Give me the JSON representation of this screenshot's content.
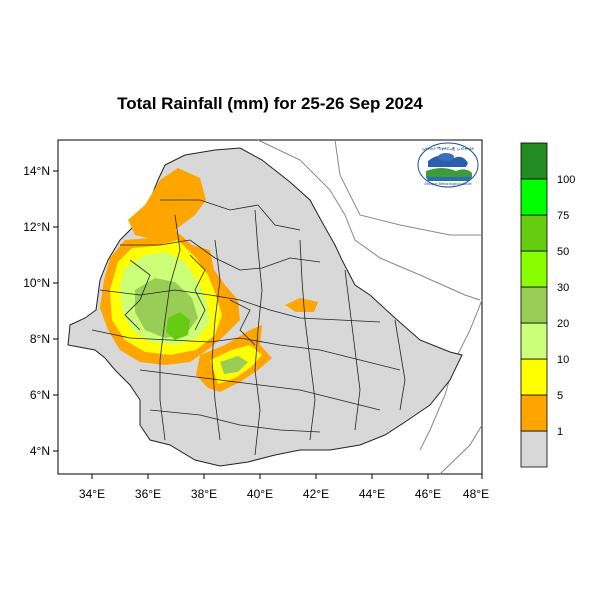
{
  "title": "Total Rainfall (mm) for 25-26 Sep 2024",
  "axes": {
    "x_ticks": [
      "34°E",
      "36°E",
      "38°E",
      "40°E",
      "42°E",
      "44°E",
      "46°E",
      "48°E"
    ],
    "y_ticks": [
      "14°N",
      "12°N",
      "10°N",
      "8°N",
      "6°N",
      "4°N"
    ]
  },
  "colorbar": {
    "colors": [
      "#d8d8d8",
      "#ffa500",
      "#ffff00",
      "#ccff77",
      "#9acd55",
      "#88ff00",
      "#66cc11",
      "#00ff00",
      "#228b22"
    ],
    "labels": [
      "1",
      "5",
      "10",
      "20",
      "30",
      "50",
      "75",
      "100"
    ]
  },
  "colors": {
    "land": "#d8d8d8",
    "border": "#222222",
    "coast": "#888888"
  },
  "logo": {
    "header": "ኢትዮጵያ ሚቲዎሮሎጂ ኢንስቲትዩት",
    "footer": "Ethiopian Meteorological Institute",
    "code": "EMI"
  }
}
